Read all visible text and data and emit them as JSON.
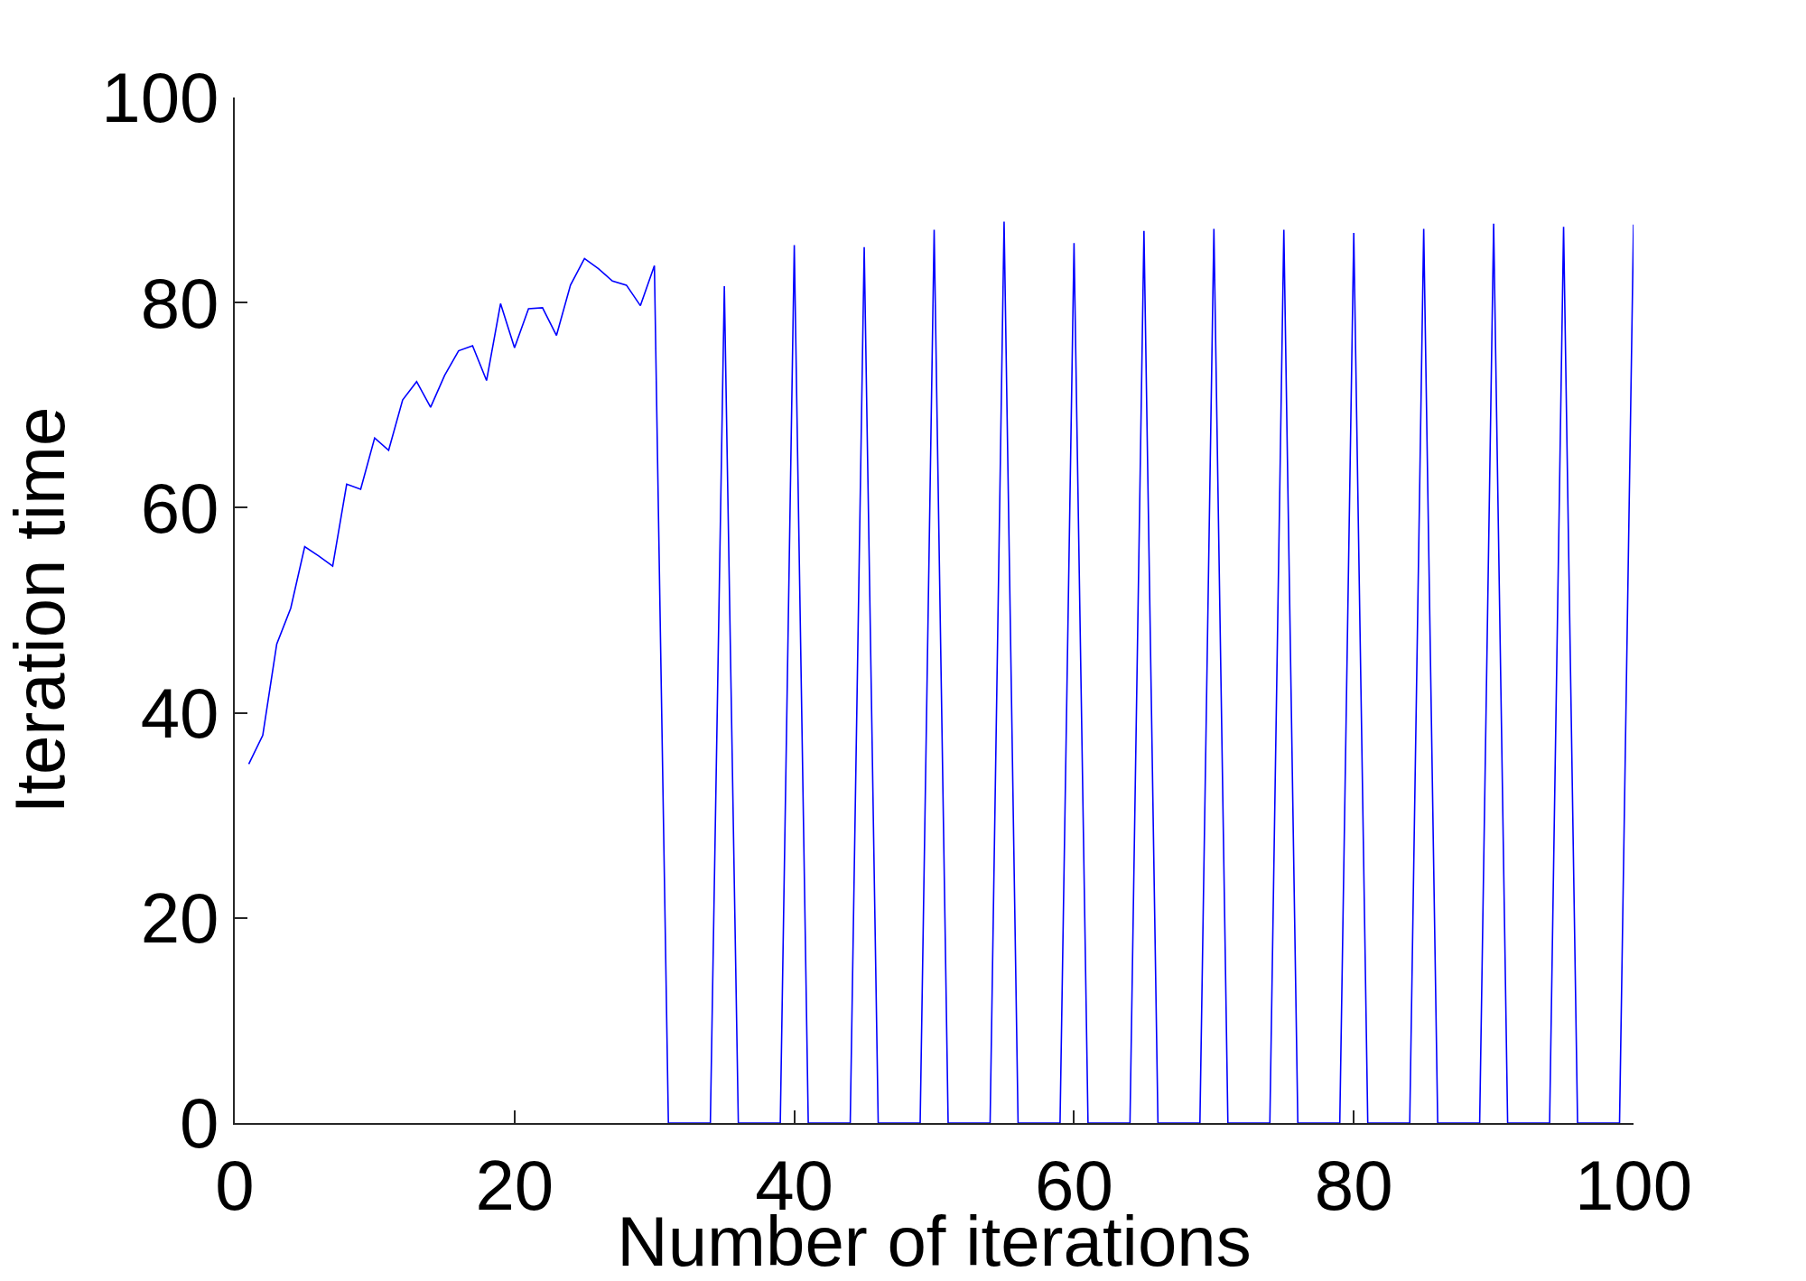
{
  "chart_data": {
    "type": "line",
    "xlabel": "Number of iterations",
    "ylabel": "Iteration time",
    "x": [
      1,
      2,
      3,
      4,
      5,
      6,
      7,
      8,
      9,
      10,
      11,
      12,
      13,
      14,
      15,
      16,
      17,
      18,
      19,
      20,
      21,
      22,
      23,
      24,
      25,
      26,
      27,
      28,
      29,
      30,
      31,
      32,
      33,
      34,
      35,
      36,
      37,
      38,
      39,
      40,
      41,
      42,
      43,
      44,
      45,
      46,
      47,
      48,
      49,
      50,
      51,
      52,
      53,
      54,
      55,
      56,
      57,
      58,
      59,
      60,
      61,
      62,
      63,
      64,
      65,
      66,
      67,
      68,
      69,
      70,
      71,
      72,
      73,
      74,
      75,
      76,
      77,
      78,
      79,
      80,
      81,
      82,
      83,
      84,
      85,
      86,
      87,
      88,
      89,
      90,
      91,
      92,
      93,
      94,
      95,
      96,
      97,
      98,
      99,
      100
    ],
    "series": [
      {
        "color": "#0000ff",
        "values": [
          35.0,
          37.8,
          46.7,
          50.2,
          56.2,
          55.3,
          54.3,
          62.3,
          61.8,
          66.8,
          65.6,
          70.5,
          72.3,
          69.8,
          72.9,
          75.3,
          75.8,
          72.4,
          79.9,
          75.6,
          79.4,
          79.5,
          76.8,
          81.7,
          84.3,
          83.3,
          82.1,
          81.7,
          79.7,
          83.6,
          0,
          0,
          0,
          0,
          81.6,
          0,
          0,
          0,
          0,
          85.6,
          0,
          0,
          0,
          0,
          85.4,
          0,
          0,
          0,
          0,
          87.1,
          0,
          0,
          0,
          0,
          87.9,
          0,
          0,
          0,
          0,
          85.8,
          0,
          0,
          0,
          0,
          87.0,
          0,
          0,
          0,
          0,
          87.2,
          0,
          0,
          0,
          0,
          87.1,
          0,
          0,
          0,
          0,
          86.8,
          0,
          0,
          0,
          0,
          87.2,
          0,
          0,
          0,
          0,
          87.7,
          0,
          0,
          0,
          0,
          87.4,
          0,
          0,
          0,
          0,
          87.6
        ]
      }
    ],
    "xlim": [
      0,
      100
    ],
    "ylim": [
      0,
      100
    ],
    "xticks": [
      0,
      20,
      40,
      60,
      80,
      100
    ],
    "yticks": [
      0,
      20,
      40,
      60,
      80,
      100
    ],
    "grid": false,
    "marker": "none",
    "line_style": "solid"
  }
}
